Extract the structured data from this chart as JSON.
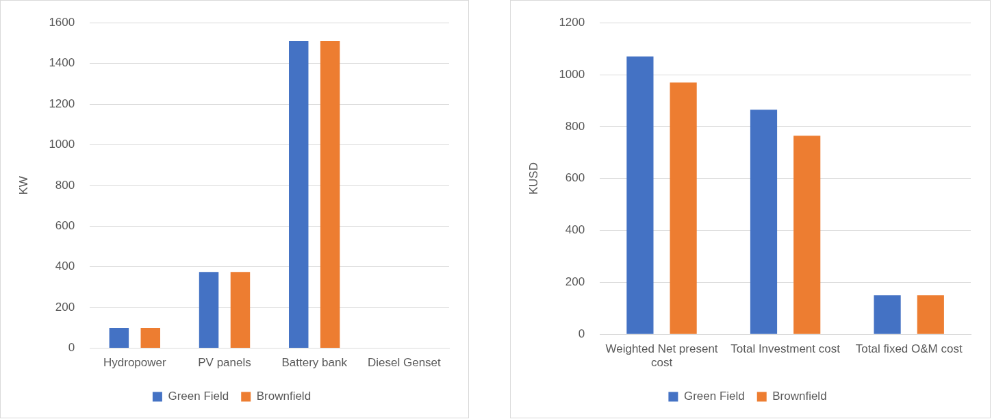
{
  "chart_data": [
    {
      "type": "bar",
      "ylabel": "KW",
      "categories": [
        "Hydropower",
        "PV panels",
        "Battery bank",
        "Diesel Genset"
      ],
      "series": [
        {
          "name": "Green Field",
          "color": "#4472c4",
          "values": [
            100,
            375,
            1510,
            0
          ]
        },
        {
          "name": "Brownfield",
          "color": "#ed7d31",
          "values": [
            100,
            375,
            1510,
            0
          ]
        }
      ],
      "ylim": [
        0,
        1600
      ],
      "yticks": [
        0,
        200,
        400,
        600,
        800,
        1000,
        1200,
        1400,
        1600
      ],
      "grid": "y",
      "legend": "bottom"
    },
    {
      "type": "bar",
      "ylabel": "KUSD",
      "categories": [
        "Weighted Net present cost",
        "Total Investment cost",
        "Total fixed O&M cost"
      ],
      "series": [
        {
          "name": "Green Field",
          "color": "#4472c4",
          "values": [
            1070,
            865,
            150
          ]
        },
        {
          "name": "Brownfield",
          "color": "#ed7d31",
          "values": [
            970,
            765,
            150
          ]
        }
      ],
      "ylim": [
        0,
        1200
      ],
      "yticks": [
        0,
        200,
        400,
        600,
        800,
        1000,
        1200
      ],
      "grid": "y",
      "legend": "bottom"
    }
  ]
}
